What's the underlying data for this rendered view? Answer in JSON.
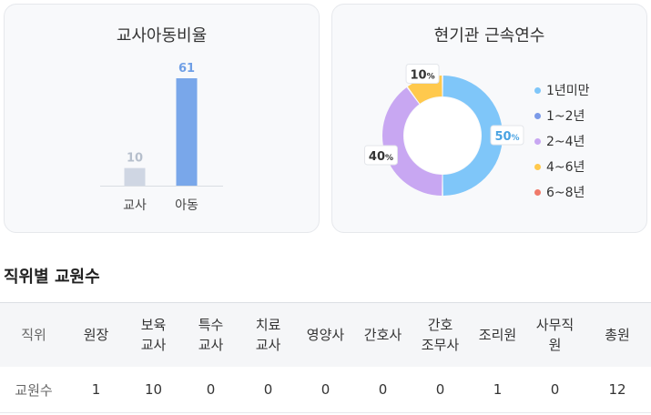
{
  "ratio_card": {
    "title": "교사아동비율",
    "chart_data": {
      "type": "bar",
      "categories": [
        "교사",
        "아동"
      ],
      "values": [
        10,
        61
      ],
      "colors": [
        "#cfd6e3",
        "#79a7ea"
      ],
      "label_colors": [
        "#b6bfcc",
        "#6f9fe6"
      ],
      "ylim": [
        0,
        61
      ]
    }
  },
  "tenure_card": {
    "title": "현기관 근속연수",
    "chart_data": {
      "type": "pie",
      "donut": true,
      "categories": [
        "1년미만",
        "1~2년",
        "2~4년",
        "4~6년",
        "6~8년"
      ],
      "values": [
        50,
        0,
        40,
        10,
        0
      ],
      "colors": [
        "#7fc6f9",
        "#7b9ae8",
        "#c8a7f2",
        "#ffc94d",
        "#f07a6a"
      ],
      "label_colors": [
        "#4aa3e2",
        "#5b7fd8",
        "#333333",
        "#333333",
        "#e0584a"
      ],
      "unit": "%"
    }
  },
  "staff_section": {
    "title": "직위별 교원수",
    "headers": [
      "직위",
      "원장",
      "보육교사",
      "특수교사",
      "치료교사",
      "영양사",
      "간호사",
      "간호조무사",
      "조리원",
      "사무직원",
      "총원"
    ],
    "rows": [
      [
        "교원수",
        "1",
        "10",
        "0",
        "0",
        "0",
        "0",
        "0",
        "1",
        "0",
        "12"
      ]
    ]
  }
}
